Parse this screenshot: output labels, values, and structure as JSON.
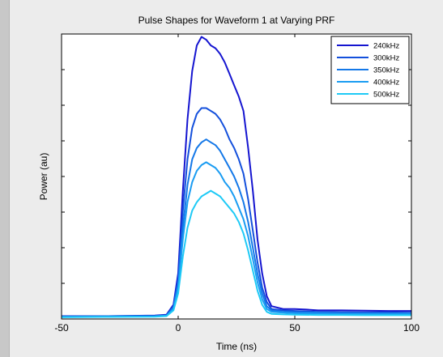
{
  "chart_data": {
    "type": "line",
    "title": "Pulse Shapes for Waveform 1 at Varying PRF",
    "xlabel": "Time (ns)",
    "ylabel": "Power (au)",
    "xlim": [
      -50,
      100
    ],
    "ylim": [
      0,
      1.0
    ],
    "x_ticks": [
      -50,
      0,
      50,
      100
    ],
    "y_tick_labels_shown": false,
    "legend_position": "top-right",
    "grid": false,
    "series": [
      {
        "name": "240kHz",
        "color": "#1515d0",
        "points": [
          [
            -50,
            0.01
          ],
          [
            -30,
            0.01
          ],
          [
            -10,
            0.012
          ],
          [
            -5,
            0.015
          ],
          [
            -2,
            0.05
          ],
          [
            0,
            0.16
          ],
          [
            2,
            0.45
          ],
          [
            4,
            0.7
          ],
          [
            6,
            0.87
          ],
          [
            8,
            0.96
          ],
          [
            10,
            0.99
          ],
          [
            12,
            0.98
          ],
          [
            14,
            0.96
          ],
          [
            16,
            0.95
          ],
          [
            18,
            0.93
          ],
          [
            20,
            0.9
          ],
          [
            22,
            0.86
          ],
          [
            24,
            0.82
          ],
          [
            26,
            0.78
          ],
          [
            28,
            0.73
          ],
          [
            30,
            0.6
          ],
          [
            32,
            0.45
          ],
          [
            34,
            0.28
          ],
          [
            36,
            0.16
          ],
          [
            38,
            0.08
          ],
          [
            40,
            0.045
          ],
          [
            45,
            0.035
          ],
          [
            50,
            0.035
          ],
          [
            55,
            0.033
          ],
          [
            60,
            0.03
          ],
          [
            70,
            0.03
          ],
          [
            80,
            0.029
          ],
          [
            90,
            0.028
          ],
          [
            100,
            0.028
          ]
        ]
      },
      {
        "name": "300kHz",
        "color": "#1450dc",
        "points": [
          [
            -50,
            0.009
          ],
          [
            -30,
            0.01
          ],
          [
            -10,
            0.011
          ],
          [
            -5,
            0.013
          ],
          [
            -2,
            0.045
          ],
          [
            0,
            0.14
          ],
          [
            2,
            0.38
          ],
          [
            4,
            0.56
          ],
          [
            6,
            0.67
          ],
          [
            8,
            0.72
          ],
          [
            10,
            0.74
          ],
          [
            12,
            0.74
          ],
          [
            14,
            0.73
          ],
          [
            16,
            0.72
          ],
          [
            18,
            0.7
          ],
          [
            20,
            0.67
          ],
          [
            22,
            0.63
          ],
          [
            24,
            0.6
          ],
          [
            26,
            0.56
          ],
          [
            28,
            0.51
          ],
          [
            30,
            0.42
          ],
          [
            32,
            0.31
          ],
          [
            34,
            0.2
          ],
          [
            36,
            0.11
          ],
          [
            38,
            0.06
          ],
          [
            40,
            0.035
          ],
          [
            45,
            0.03
          ],
          [
            50,
            0.028
          ],
          [
            60,
            0.025
          ],
          [
            70,
            0.024
          ],
          [
            80,
            0.023
          ],
          [
            90,
            0.023
          ],
          [
            100,
            0.022
          ]
        ]
      },
      {
        "name": "350kHz",
        "color": "#1478e8",
        "points": [
          [
            -50,
            0.008
          ],
          [
            -30,
            0.009
          ],
          [
            -10,
            0.01
          ],
          [
            -5,
            0.012
          ],
          [
            -2,
            0.04
          ],
          [
            0,
            0.12
          ],
          [
            2,
            0.32
          ],
          [
            4,
            0.47
          ],
          [
            6,
            0.56
          ],
          [
            8,
            0.6
          ],
          [
            10,
            0.62
          ],
          [
            12,
            0.63
          ],
          [
            14,
            0.62
          ],
          [
            16,
            0.61
          ],
          [
            18,
            0.59
          ],
          [
            20,
            0.56
          ],
          [
            22,
            0.53
          ],
          [
            24,
            0.5
          ],
          [
            26,
            0.46
          ],
          [
            28,
            0.41
          ],
          [
            30,
            0.34
          ],
          [
            32,
            0.25
          ],
          [
            34,
            0.16
          ],
          [
            36,
            0.09
          ],
          [
            38,
            0.045
          ],
          [
            40,
            0.03
          ],
          [
            45,
            0.025
          ],
          [
            50,
            0.024
          ],
          [
            60,
            0.022
          ],
          [
            70,
            0.021
          ],
          [
            80,
            0.02
          ],
          [
            90,
            0.02
          ],
          [
            100,
            0.02
          ]
        ]
      },
      {
        "name": "400kHz",
        "color": "#1a9cf2",
        "points": [
          [
            -50,
            0.007
          ],
          [
            -30,
            0.008
          ],
          [
            -10,
            0.009
          ],
          [
            -5,
            0.011
          ],
          [
            -2,
            0.035
          ],
          [
            0,
            0.11
          ],
          [
            2,
            0.28
          ],
          [
            4,
            0.41
          ],
          [
            6,
            0.48
          ],
          [
            8,
            0.52
          ],
          [
            10,
            0.54
          ],
          [
            12,
            0.55
          ],
          [
            14,
            0.54
          ],
          [
            16,
            0.53
          ],
          [
            18,
            0.51
          ],
          [
            20,
            0.48
          ],
          [
            22,
            0.46
          ],
          [
            24,
            0.43
          ],
          [
            26,
            0.39
          ],
          [
            28,
            0.35
          ],
          [
            30,
            0.29
          ],
          [
            32,
            0.21
          ],
          [
            34,
            0.13
          ],
          [
            36,
            0.07
          ],
          [
            38,
            0.035
          ],
          [
            40,
            0.025
          ],
          [
            45,
            0.022
          ],
          [
            50,
            0.02
          ],
          [
            60,
            0.019
          ],
          [
            70,
            0.018
          ],
          [
            80,
            0.018
          ],
          [
            90,
            0.017
          ],
          [
            100,
            0.017
          ]
        ]
      },
      {
        "name": "500kHz",
        "color": "#1ecaf6",
        "points": [
          [
            -50,
            0.006
          ],
          [
            -30,
            0.007
          ],
          [
            -10,
            0.008
          ],
          [
            -5,
            0.01
          ],
          [
            -2,
            0.03
          ],
          [
            0,
            0.09
          ],
          [
            2,
            0.22
          ],
          [
            4,
            0.32
          ],
          [
            6,
            0.38
          ],
          [
            8,
            0.41
          ],
          [
            10,
            0.43
          ],
          [
            12,
            0.44
          ],
          [
            14,
            0.45
          ],
          [
            16,
            0.44
          ],
          [
            18,
            0.43
          ],
          [
            20,
            0.41
          ],
          [
            22,
            0.39
          ],
          [
            24,
            0.37
          ],
          [
            26,
            0.34
          ],
          [
            28,
            0.3
          ],
          [
            30,
            0.24
          ],
          [
            32,
            0.17
          ],
          [
            34,
            0.1
          ],
          [
            36,
            0.05
          ],
          [
            38,
            0.025
          ],
          [
            40,
            0.018
          ],
          [
            45,
            0.016
          ],
          [
            50,
            0.015
          ],
          [
            60,
            0.014
          ],
          [
            70,
            0.014
          ],
          [
            80,
            0.013
          ],
          [
            90,
            0.013
          ],
          [
            100,
            0.013
          ]
        ]
      }
    ]
  }
}
